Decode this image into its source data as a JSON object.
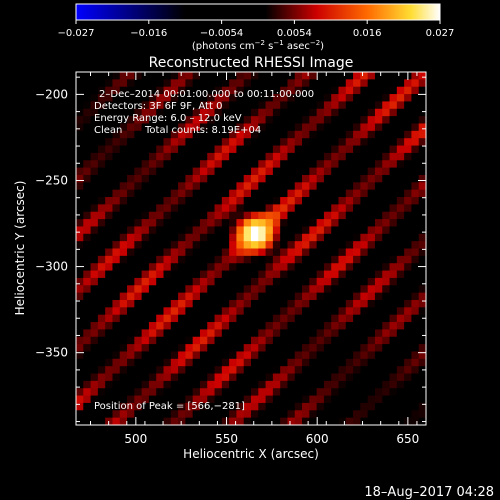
{
  "chart_data": {
    "type": "heatmap",
    "title": "Reconstructed RHESSI Image",
    "xlabel": "Heliocentric X (arcsec)",
    "ylabel": "Heliocentric Y (arcsec)",
    "xlim": [
      467,
      660
    ],
    "ylim": [
      -392,
      -187
    ],
    "x_ticks": [
      500,
      550,
      600,
      650
    ],
    "y_ticks": [
      -200,
      -250,
      -300,
      -350
    ],
    "colorbar": {
      "vmin": -0.027,
      "vmax": 0.027,
      "ticks": [
        "−0.027",
        "−0.016",
        "−0.0054",
        "0.0054",
        "0.016",
        "0.027"
      ],
      "colormap": "blue-black-red-yellow-white",
      "units_prefix": "(photons cm",
      "units_exp1": "−2",
      "units_mid": " s",
      "units_exp2": "−1",
      "units_mid2": " asec",
      "units_exp3": "−2",
      "units_suffix": ")"
    },
    "annotations": {
      "time": "2–Dec–2014 00:01:00.000 to 00:11:00.000",
      "detectors": "Detectors: 3F 6F 9F, Att 0",
      "energy": "Energy Range: 6.0 – 12.0 keV",
      "clean": "Clean",
      "counts": "Total counts: 8.19E+04",
      "peak": "Position of Peak = [566,−281]"
    },
    "peak": {
      "x": 566,
      "y": -281
    },
    "footer": "18–Aug–2017 04:28"
  },
  "colors": {
    "background": "#000000",
    "foreground": "#ffffff"
  }
}
